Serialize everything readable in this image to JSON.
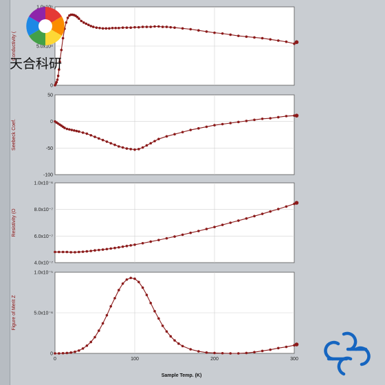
{
  "branding": {
    "logo_text": "天合科研"
  },
  "chart_data": [
    {
      "type": "line",
      "ylabel": "Conductivity (",
      "ytick_labels": [
        "0",
        "5.0x10⁴",
        "1.0x10⁵"
      ],
      "ylim": [
        0,
        100000
      ],
      "xlim": [
        0,
        300
      ],
      "x": [
        0,
        1,
        2,
        3,
        4,
        5,
        6,
        8,
        10,
        12,
        14,
        16,
        18,
        20,
        22,
        24,
        26,
        28,
        30,
        33,
        36,
        39,
        42,
        45,
        48,
        52,
        56,
        60,
        64,
        68,
        72,
        76,
        80,
        85,
        90,
        95,
        100,
        105,
        110,
        115,
        120,
        125,
        130,
        135,
        140,
        145,
        150,
        160,
        170,
        180,
        190,
        200,
        210,
        220,
        230,
        240,
        250,
        260,
        270,
        280,
        290,
        300,
        303
      ],
      "y": [
        0,
        2000,
        4000,
        7000,
        12000,
        20000,
        30000,
        45000,
        60000,
        72000,
        80000,
        86000,
        89000,
        90000,
        90000,
        89500,
        88500,
        87000,
        85000,
        82000,
        80000,
        78500,
        77000,
        75500,
        74500,
        73500,
        73000,
        72500,
        72500,
        72500,
        73000,
        73000,
        73000,
        73500,
        73500,
        73500,
        74000,
        74000,
        74500,
        74500,
        74500,
        75000,
        75000,
        74500,
        74500,
        74000,
        73500,
        72500,
        71500,
        70000,
        68500,
        67000,
        66000,
        64500,
        63000,
        62000,
        61000,
        60000,
        58500,
        57000,
        55500,
        53000,
        55000
      ]
    },
    {
      "type": "line",
      "ylabel": "Seebeck Coef.",
      "ytick_labels": [
        "-100",
        "-50",
        "0",
        "50"
      ],
      "ylim": [
        -100,
        50
      ],
      "xlim": [
        0,
        300
      ],
      "x": [
        0,
        2,
        4,
        6,
        8,
        10,
        12,
        15,
        18,
        21,
        24,
        27,
        30,
        35,
        40,
        45,
        50,
        55,
        60,
        65,
        70,
        75,
        80,
        85,
        90,
        95,
        100,
        105,
        110,
        115,
        120,
        125,
        130,
        140,
        150,
        160,
        170,
        180,
        190,
        200,
        210,
        220,
        230,
        240,
        250,
        260,
        270,
        280,
        290,
        300,
        303
      ],
      "y": [
        0,
        -2,
        -4,
        -6,
        -8,
        -10,
        -12,
        -14,
        -15,
        -16,
        -17,
        -18,
        -19,
        -21,
        -23,
        -26,
        -29,
        -32,
        -35,
        -38,
        -41,
        -44,
        -47,
        -49,
        -51,
        -52,
        -53,
        -52,
        -49,
        -45,
        -41,
        -37,
        -33,
        -28,
        -24,
        -20,
        -16,
        -13,
        -10,
        -7,
        -5,
        -3,
        -1,
        1,
        3,
        5,
        6,
        8,
        10,
        11,
        11
      ]
    },
    {
      "type": "line",
      "ylabel": "Resistivity (O",
      "ytick_labels": [
        "4.0x10⁻⁷",
        "6.0x10⁻⁷",
        "8.0x10⁻⁷",
        "1.0x10⁻⁶"
      ],
      "ylim": [
        4e-07,
        1e-06
      ],
      "xlim": [
        0,
        300
      ],
      "x": [
        0,
        5,
        10,
        15,
        20,
        25,
        30,
        35,
        40,
        45,
        50,
        55,
        60,
        65,
        70,
        75,
        80,
        85,
        90,
        95,
        100,
        110,
        120,
        130,
        140,
        150,
        160,
        170,
        180,
        190,
        200,
        210,
        220,
        230,
        240,
        250,
        260,
        270,
        280,
        290,
        300,
        303
      ],
      "y": [
        4.8e-07,
        4.8e-07,
        4.8e-07,
        4.8e-07,
        4.78e-07,
        4.78e-07,
        4.8e-07,
        4.82e-07,
        4.85e-07,
        4.88e-07,
        4.92e-07,
        4.95e-07,
        4.98e-07,
        5.02e-07,
        5.06e-07,
        5.1e-07,
        5.15e-07,
        5.2e-07,
        5.25e-07,
        5.3e-07,
        5.35e-07,
        5.46e-07,
        5.58e-07,
        5.7e-07,
        5.83e-07,
        5.96e-07,
        6.1e-07,
        6.24e-07,
        6.38e-07,
        6.53e-07,
        6.68e-07,
        6.84e-07,
        7e-07,
        7.16e-07,
        7.32e-07,
        7.5e-07,
        7.67e-07,
        7.85e-07,
        8.03e-07,
        8.22e-07,
        8.42e-07,
        8.5e-07
      ]
    },
    {
      "type": "line",
      "ylabel": "Figure of Merit Z",
      "ytick_labels": [
        "0",
        "5.0x10⁻⁶",
        "1.0x10⁻⁵"
      ],
      "ylim": [
        0,
        1e-05
      ],
      "xlim": [
        0,
        300
      ],
      "xlabel": "Sample Temp. (K)",
      "xtick_labels": [
        "0",
        "100",
        "200",
        "300"
      ],
      "x": [
        0,
        5,
        10,
        15,
        20,
        25,
        30,
        35,
        40,
        45,
        50,
        55,
        60,
        65,
        70,
        75,
        80,
        85,
        90,
        95,
        100,
        105,
        110,
        115,
        120,
        125,
        130,
        135,
        140,
        145,
        150,
        155,
        160,
        170,
        180,
        190,
        200,
        210,
        220,
        230,
        240,
        250,
        260,
        270,
        280,
        290,
        300,
        303
      ],
      "y": [
        0,
        0,
        2e-08,
        5e-08,
        1e-07,
        2e-07,
        3.5e-07,
        6e-07,
        9.5e-07,
        1.4e-06,
        2e-06,
        2.8e-06,
        3.7e-06,
        4.7e-06,
        5.8e-06,
        6.8e-06,
        7.8e-06,
        8.6e-06,
        9.1e-06,
        9.3e-06,
        9.2e-06,
        8.8e-06,
        8.1e-06,
        7.2e-06,
        6.2e-06,
        5.2e-06,
        4.3e-06,
        3.4e-06,
        2.7e-06,
        2.1e-06,
        1.6e-06,
        1.2e-06,
        9e-07,
        5e-07,
        2.5e-07,
        1e-07,
        5e-08,
        2e-08,
        0,
        0,
        5e-08,
        1.5e-07,
        3e-07,
        4.5e-07,
        6.5e-07,
        8e-07,
        1e-06,
        1.1e-06
      ]
    }
  ]
}
